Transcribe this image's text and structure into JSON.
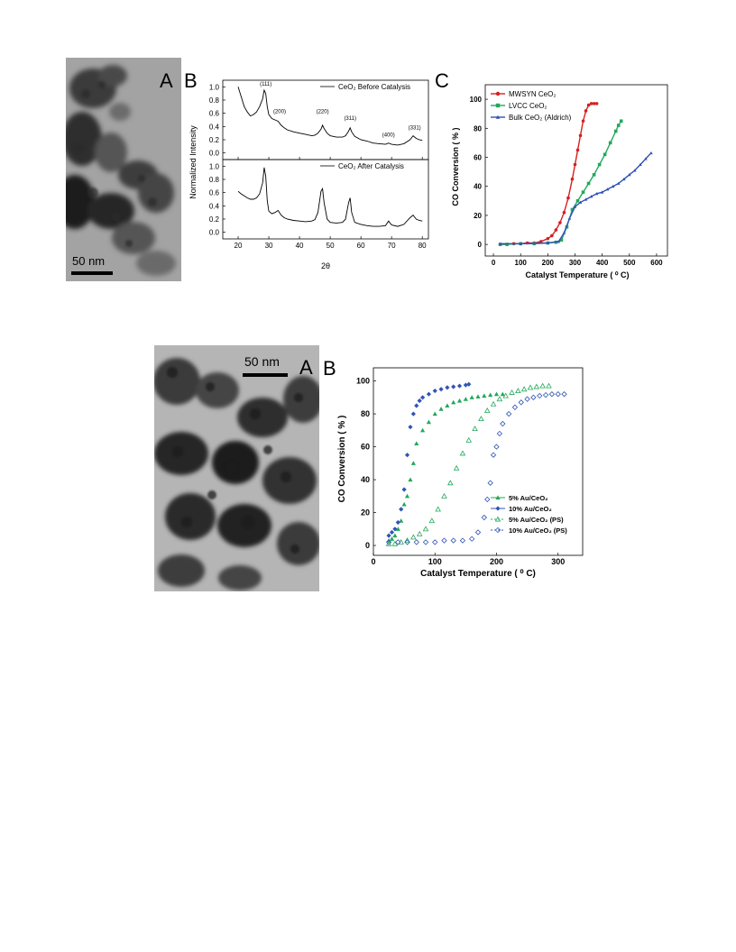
{
  "figure1": {
    "panel_a": {
      "letter": "A",
      "scale_bar": "50 nm"
    },
    "panel_b": {
      "letter": "B"
    },
    "panel_c": {
      "letter": "C"
    }
  },
  "figure2": {
    "panel_a": {
      "letter": "A",
      "scale_bar": "50 nm"
    },
    "panel_b": {
      "letter": "B"
    }
  },
  "chart_data": [
    {
      "id": "fig1-b-top",
      "type": "line",
      "xlabel": "",
      "ylabel": "Normalized Intensity",
      "xlim": [
        15,
        82
      ],
      "ylim": [
        -0.1,
        1.1
      ],
      "xticks": [
        20,
        30,
        40,
        50,
        60,
        70,
        80
      ],
      "yticks": [
        0.0,
        0.2,
        0.4,
        0.6,
        0.8,
        1.0
      ],
      "legend": "top-right",
      "series": [
        {
          "name": "CeO₂ Before Catalysis",
          "color": "#000000",
          "x": [
            20,
            21,
            22,
            23,
            24,
            25,
            26,
            27,
            28,
            28.5,
            29,
            29.5,
            30,
            31,
            32,
            33,
            34,
            35,
            36,
            38,
            40,
            42,
            44,
            45,
            46,
            47,
            47.5,
            48,
            49,
            50,
            52,
            54,
            55,
            56,
            56.5,
            57,
            58,
            60,
            62,
            64,
            66,
            68,
            69,
            70,
            72,
            74,
            76,
            77,
            78,
            79,
            80
          ],
          "y": [
            1.0,
            0.85,
            0.7,
            0.62,
            0.56,
            0.58,
            0.62,
            0.7,
            0.82,
            0.95,
            0.9,
            0.7,
            0.58,
            0.52,
            0.5,
            0.48,
            0.42,
            0.38,
            0.35,
            0.32,
            0.3,
            0.28,
            0.26,
            0.27,
            0.3,
            0.36,
            0.42,
            0.37,
            0.3,
            0.26,
            0.24,
            0.24,
            0.26,
            0.33,
            0.38,
            0.32,
            0.25,
            0.2,
            0.18,
            0.15,
            0.14,
            0.13,
            0.15,
            0.13,
            0.12,
            0.14,
            0.2,
            0.26,
            0.22,
            0.2,
            0.19
          ]
        }
      ],
      "annotations": [
        {
          "text": "(111)",
          "x": 29,
          "y": 1.02
        },
        {
          "text": "(200)",
          "x": 33.5,
          "y": 0.6
        },
        {
          "text": "(220)",
          "x": 47.5,
          "y": 0.6
        },
        {
          "text": "(311)",
          "x": 56.5,
          "y": 0.5
        },
        {
          "text": "(400)",
          "x": 69,
          "y": 0.25
        },
        {
          "text": "(331)",
          "x": 77.5,
          "y": 0.36
        }
      ]
    },
    {
      "id": "fig1-b-bottom",
      "type": "line",
      "xlabel": "2θ",
      "ylabel": "",
      "xlim": [
        15,
        82
      ],
      "ylim": [
        -0.1,
        1.1
      ],
      "xticks": [
        20,
        30,
        40,
        50,
        60,
        70,
        80
      ],
      "yticks": [
        0.0,
        0.2,
        0.4,
        0.6,
        0.8,
        1.0
      ],
      "legend": "top-right",
      "series": [
        {
          "name": "CeO₂ After Catalysis",
          "color": "#000000",
          "x": [
            20,
            21,
            22,
            23,
            24,
            25,
            26,
            27,
            28,
            28.5,
            29,
            29.5,
            30,
            31,
            32,
            33,
            34,
            35,
            36,
            38,
            40,
            42,
            44,
            45,
            46,
            47,
            47.5,
            48,
            49,
            50,
            52,
            54,
            55,
            56,
            56.5,
            57,
            58,
            60,
            62,
            64,
            66,
            68,
            69,
            70,
            72,
            74,
            76,
            77,
            78,
            79,
            80
          ],
          "y": [
            0.62,
            0.58,
            0.55,
            0.52,
            0.5,
            0.5,
            0.52,
            0.58,
            0.75,
            0.98,
            0.85,
            0.48,
            0.32,
            0.28,
            0.3,
            0.33,
            0.26,
            0.22,
            0.2,
            0.18,
            0.17,
            0.16,
            0.17,
            0.19,
            0.3,
            0.62,
            0.66,
            0.45,
            0.2,
            0.15,
            0.14,
            0.15,
            0.2,
            0.45,
            0.52,
            0.3,
            0.15,
            0.12,
            0.1,
            0.09,
            0.09,
            0.1,
            0.17,
            0.11,
            0.09,
            0.12,
            0.22,
            0.26,
            0.2,
            0.18,
            0.17
          ]
        }
      ],
      "annotations": []
    },
    {
      "id": "fig1-c",
      "type": "line",
      "xlabel": "Catalyst Temperature ( ⁰ C)",
      "ylabel": "CO Conversion ( % )",
      "xlim": [
        -30,
        640
      ],
      "ylim": [
        -8,
        110
      ],
      "xticks": [
        0,
        100,
        200,
        300,
        400,
        500,
        600
      ],
      "yticks": [
        0,
        20,
        40,
        60,
        80,
        100
      ],
      "legend": "top-left",
      "series": [
        {
          "name": "MWSYN CeO₂",
          "color": "#d62020",
          "marker": "circle",
          "x": [
            25,
            50,
            75,
            100,
            125,
            150,
            175,
            200,
            215,
            230,
            245,
            260,
            275,
            290,
            300,
            310,
            320,
            330,
            340,
            350,
            360,
            370,
            380
          ],
          "y": [
            0,
            0,
            0.5,
            0.5,
            1,
            1,
            2,
            4,
            6,
            10,
            15,
            22,
            32,
            45,
            55,
            65,
            75,
            85,
            92,
            96,
            97,
            97,
            97
          ]
        },
        {
          "name": "LVCC CeO₂",
          "color": "#22a85a",
          "marker": "square",
          "x": [
            25,
            50,
            100,
            150,
            200,
            230,
            250,
            270,
            290,
            310,
            330,
            350,
            370,
            390,
            410,
            430,
            450,
            460,
            470
          ],
          "y": [
            0,
            0,
            0.5,
            0.5,
            1,
            1.5,
            3,
            12,
            24,
            30,
            36,
            42,
            48,
            55,
            62,
            70,
            78,
            82,
            85
          ]
        },
        {
          "name": "Bulk CeO₂ (Aldrich)",
          "color": "#3050b8",
          "marker": "triangle",
          "x": [
            25,
            100,
            200,
            240,
            260,
            280,
            300,
            320,
            340,
            360,
            380,
            400,
            420,
            440,
            460,
            480,
            500,
            520,
            540,
            560,
            580
          ],
          "y": [
            0.5,
            0.5,
            1,
            2,
            8,
            18,
            26,
            29,
            31,
            33,
            35,
            36,
            38,
            40,
            42,
            45,
            48,
            51,
            55,
            59,
            63
          ]
        }
      ]
    },
    {
      "id": "fig2-b",
      "type": "scatter",
      "xlabel": "Catalyst Temperature ( ⁰ C)",
      "ylabel": "CO Conversion ( % )",
      "xlim": [
        0,
        340
      ],
      "ylim": [
        -6,
        108
      ],
      "xticks": [
        0,
        100,
        200,
        300
      ],
      "yticks": [
        0,
        20,
        40,
        60,
        80,
        100
      ],
      "legend": "bottom-right",
      "series": [
        {
          "name": "5% Au/CeO₂",
          "color": "#22a85a",
          "marker": "triangle-filled",
          "x": [
            25,
            30,
            35,
            40,
            45,
            50,
            55,
            60,
            65,
            70,
            80,
            90,
            100,
            110,
            120,
            130,
            140,
            150,
            160,
            170,
            180,
            190,
            200,
            210
          ],
          "y": [
            3,
            4,
            6,
            10,
            15,
            25,
            30,
            40,
            50,
            62,
            70,
            75,
            80,
            83,
            85,
            87,
            88,
            89,
            90,
            90.5,
            91,
            91.5,
            92,
            92
          ]
        },
        {
          "name": "10% Au/CeO₂",
          "color": "#2f55b5",
          "marker": "diamond-filled",
          "x": [
            25,
            30,
            35,
            40,
            45,
            50,
            55,
            60,
            65,
            70,
            75,
            80,
            90,
            100,
            110,
            120,
            130,
            140,
            150,
            155
          ],
          "y": [
            6,
            8,
            10,
            14,
            22,
            34,
            55,
            72,
            80,
            85,
            88,
            90,
            92,
            94,
            95,
            96,
            96.5,
            97,
            97.5,
            98
          ]
        },
        {
          "name": "5% Au/CeO₂ (PS)",
          "color": "#22a85a",
          "marker": "triangle-open",
          "x": [
            25,
            35,
            45,
            55,
            65,
            75,
            85,
            95,
            105,
            115,
            125,
            135,
            145,
            155,
            165,
            175,
            185,
            195,
            205,
            215,
            225,
            235,
            245,
            255,
            265,
            275,
            285
          ],
          "y": [
            1,
            1,
            2,
            3,
            5,
            7,
            10,
            15,
            22,
            30,
            38,
            47,
            56,
            64,
            71,
            77,
            82,
            86,
            89,
            91,
            93,
            94,
            95,
            96,
            96.5,
            97,
            97
          ]
        },
        {
          "name": "10% Au/CeO₂ (PS)",
          "color": "#2f55b5",
          "marker": "diamond-open",
          "x": [
            25,
            40,
            55,
            70,
            85,
            100,
            115,
            130,
            145,
            160,
            170,
            180,
            185,
            190,
            195,
            200,
            205,
            210,
            220,
            230,
            240,
            250,
            260,
            270,
            280,
            290,
            300,
            310
          ],
          "y": [
            2,
            2,
            2,
            2,
            2,
            2,
            3,
            3,
            3,
            4,
            8,
            17,
            28,
            38,
            55,
            60,
            68,
            74,
            80,
            84,
            87,
            89,
            90,
            91,
            91.5,
            92,
            92,
            92
          ]
        }
      ]
    }
  ]
}
